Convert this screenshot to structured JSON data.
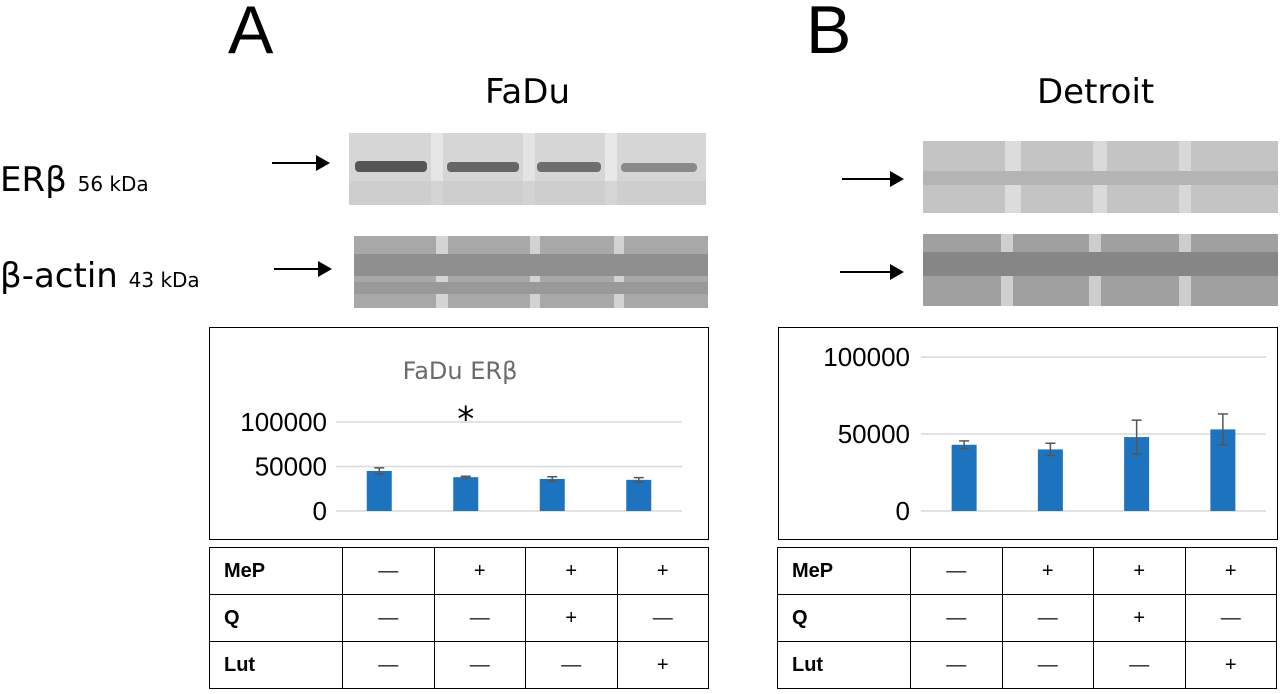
{
  "panels": {
    "A": {
      "letter": "A",
      "cell_line": "FaDu",
      "markers": [
        {
          "name": "ERβ",
          "kda": "56 kDa"
        },
        {
          "name": "β-actin",
          "kda": "43 kDa"
        }
      ]
    },
    "B": {
      "letter": "B",
      "cell_line": "Detroit"
    }
  },
  "treatment_table": {
    "rows": [
      {
        "label": "MeP",
        "values": [
          "—",
          "+",
          "+",
          "+"
        ]
      },
      {
        "label": "Q",
        "values": [
          "—",
          "—",
          "+",
          "—"
        ]
      },
      {
        "label": "Lut",
        "values": [
          "—",
          "—",
          "—",
          "+"
        ]
      }
    ]
  },
  "chart_data": [
    {
      "type": "bar",
      "title": "FaDu ERβ",
      "categories": [
        "1",
        "2",
        "3",
        "4"
      ],
      "values": [
        45000,
        38000,
        36000,
        35000
      ],
      "errors": [
        3500,
        1000,
        2500,
        2500
      ],
      "significance": [
        "",
        "*",
        "",
        ""
      ],
      "ylim": [
        0,
        100000
      ],
      "yticks": [
        0,
        50000,
        100000
      ],
      "ytick_labels": [
        "0",
        "50000",
        "100000"
      ],
      "grid": true,
      "bar_color": "#1e73be"
    },
    {
      "type": "bar",
      "title": "",
      "categories": [
        "1",
        "2",
        "3",
        "4"
      ],
      "values": [
        43000,
        40000,
        48000,
        53000
      ],
      "errors": [
        2500,
        4000,
        11000,
        10000
      ],
      "ylim": [
        0,
        100000
      ],
      "yticks": [
        0,
        50000,
        100000
      ],
      "ytick_labels": [
        "0",
        "50000",
        "100000"
      ],
      "grid": true,
      "bar_color": "#1e73be"
    }
  ]
}
